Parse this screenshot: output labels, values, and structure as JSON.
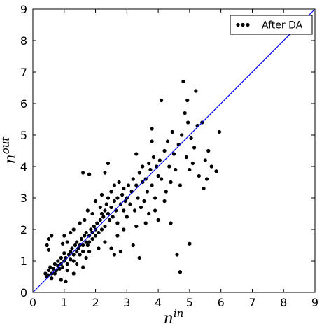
{
  "chart_data": {
    "type": "scatter",
    "x_label": {
      "base": "n",
      "sup": "in"
    },
    "y_label": {
      "base": "n",
      "sup": "out"
    },
    "series": [
      {
        "name": "After DA",
        "color": "#000000",
        "x": [
          0.4,
          0.45,
          0.5,
          0.5,
          0.55,
          0.6,
          0.6,
          0.65,
          0.7,
          0.7,
          0.75,
          0.8,
          0.8,
          0.85,
          0.9,
          0.9,
          0.95,
          1.0,
          1.0,
          0.5,
          0.45,
          0.6,
          0.5,
          0.9,
          1.05,
          1.05,
          1.1,
          1.15,
          1.2,
          1.2,
          1.25,
          1.3,
          1.3,
          1.35,
          1.4,
          1.4,
          1.45,
          1.5,
          1.5,
          1.55,
          1.6,
          1.6,
          1.65,
          1.7,
          1.7,
          1.75,
          1.8,
          1.8,
          1.85,
          1.9,
          1.9,
          1.95,
          2.0,
          2.0,
          1.1,
          1.2,
          1.3,
          1.5,
          1.0,
          1.4,
          1.6,
          1.7,
          1.8,
          1.3,
          1.1,
          0.95,
          1.65,
          1.75,
          1.9,
          2.05,
          2.1,
          2.15,
          2.2,
          2.2,
          2.25,
          2.3,
          2.3,
          2.35,
          2.4,
          2.4,
          2.45,
          2.5,
          2.5,
          2.55,
          2.6,
          2.6,
          2.65,
          2.7,
          2.7,
          2.75,
          2.8,
          2.85,
          2.9,
          2.9,
          2.95,
          3.0,
          3.0,
          2.1,
          2.3,
          2.5,
          2.7,
          2.2,
          2.0,
          2.3,
          1.6,
          1.8,
          2.4,
          2.6,
          2.8,
          2.9,
          2.15,
          3.05,
          3.1,
          3.15,
          3.2,
          3.25,
          3.3,
          3.3,
          3.35,
          3.4,
          3.45,
          3.5,
          3.5,
          3.55,
          3.6,
          3.65,
          3.7,
          3.7,
          3.75,
          3.8,
          3.8,
          3.85,
          3.9,
          3.95,
          4.0,
          3.4,
          3.2,
          3.6,
          3.9,
          3.3,
          3.8,
          4.05,
          4.1,
          4.1,
          4.2,
          4.25,
          4.3,
          4.35,
          4.4,
          4.45,
          4.5,
          4.55,
          4.6,
          4.7,
          4.65,
          4.7,
          4.75,
          4.8,
          4.85,
          4.9,
          4.93,
          4.95,
          5.0,
          5.0,
          5.05,
          5.1,
          5.2,
          5.25,
          5.3,
          5.4,
          5.45,
          5.5,
          5.55,
          5.6,
          5.7,
          5.85,
          5.95,
          4.2,
          4.0,
          4.4,
          5.15
        ],
        "values": [
          0.6,
          0.5,
          0.7,
          0.55,
          0.8,
          0.6,
          0.45,
          0.75,
          0.9,
          0.6,
          0.7,
          0.85,
          1.0,
          0.75,
          0.9,
          1.1,
          0.8,
          1.0,
          1.25,
          1.7,
          1.5,
          1.8,
          1.35,
          0.4,
          0.35,
          1.1,
          0.9,
          1.2,
          1.3,
          1.05,
          1.4,
          1.2,
          1.0,
          1.5,
          1.3,
          1.6,
          1.4,
          1.5,
          1.2,
          1.7,
          1.5,
          1.3,
          1.8,
          1.6,
          1.9,
          1.5,
          1.8,
          1.6,
          2.0,
          1.7,
          1.9,
          2.1,
          1.8,
          2.0,
          1.6,
          1.9,
          2.0,
          2.2,
          1.8,
          0.9,
          0.8,
          1.1,
          1.3,
          0.6,
          0.7,
          1.55,
          2.3,
          2.6,
          2.5,
          2.2,
          1.9,
          2.3,
          2.5,
          2.0,
          2.4,
          2.6,
          2.1,
          2.8,
          2.5,
          3.0,
          2.3,
          2.7,
          3.2,
          2.4,
          2.9,
          3.4,
          2.6,
          3.0,
          2.2,
          3.5,
          2.8,
          3.1,
          2.6,
          3.3,
          2.9,
          3.0,
          2.4,
          1.4,
          1.6,
          1.4,
          1.8,
          3.1,
          2.9,
          3.8,
          3.8,
          3.75,
          4.1,
          1.2,
          1.3,
          2.0,
          2.7,
          3.4,
          2.8,
          3.2,
          3.6,
          2.6,
          3.4,
          4.4,
          3.0,
          3.8,
          2.7,
          3.5,
          4.0,
          2.9,
          3.6,
          3.2,
          4.1,
          2.5,
          3.9,
          3.4,
          4.8,
          4.3,
          3.0,
          4.0,
          3.7,
          1.1,
          1.5,
          2.2,
          2.6,
          2.1,
          5.2,
          4.2,
          3.6,
          6.1,
          4.5,
          3.2,
          4.8,
          4.0,
          3.5,
          5.1,
          4.4,
          3.9,
          1.2,
          0.65,
          4.7,
          3.4,
          5.0,
          6.7,
          5.7,
          4.3,
          6.1,
          5.4,
          1.55,
          3.9,
          4.9,
          4.1,
          6.4,
          5.3,
          3.7,
          5.4,
          3.3,
          4.2,
          3.6,
          4.5,
          4.0,
          3.85,
          5.1,
          2.9,
          2.3,
          2.2,
          4.6
        ]
      }
    ],
    "reference_line": {
      "x": [
        0,
        9
      ],
      "y": [
        0,
        9
      ],
      "color": "#0000ff"
    },
    "xlim": [
      0,
      9
    ],
    "ylim": [
      0,
      9
    ],
    "xticks": [
      0,
      1,
      2,
      3,
      4,
      5,
      6,
      7,
      8,
      9
    ],
    "yticks": [
      0,
      1,
      2,
      3,
      4,
      5,
      6,
      7,
      8,
      9
    ],
    "legend_position": "upper-right"
  }
}
